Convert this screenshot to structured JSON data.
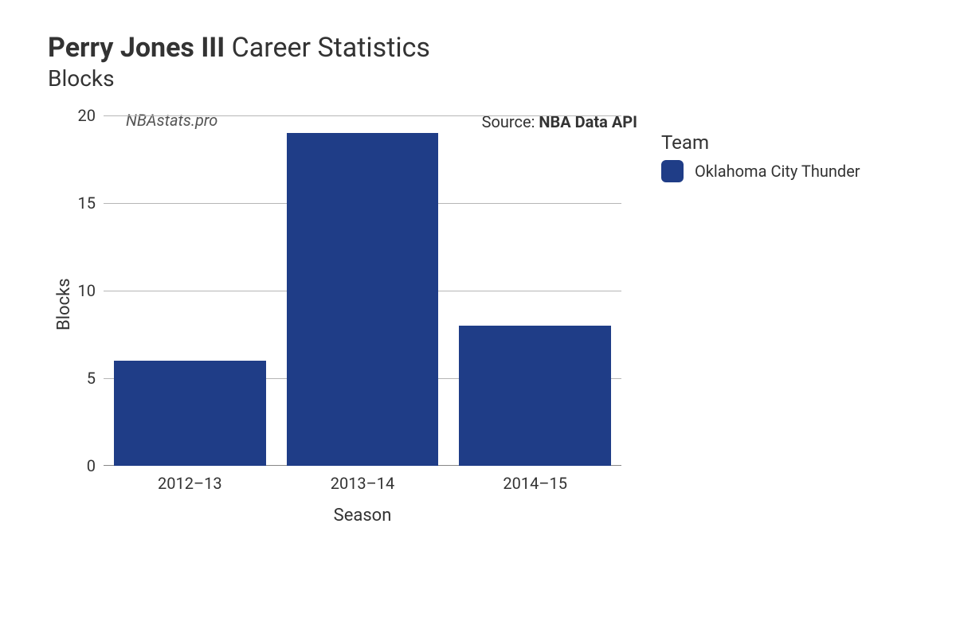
{
  "title": {
    "player_name": "Perry Jones III",
    "suffix": "Career Statistics",
    "metric": "Blocks"
  },
  "watermark": "NBAstats.pro",
  "source": {
    "prefix": "Source: ",
    "name": "NBA Data API"
  },
  "legend": {
    "title": "Team",
    "items": [
      {
        "label": "Oklahoma City Thunder",
        "color": "#1f3d87"
      }
    ]
  },
  "chart": {
    "type": "bar",
    "xlabel": "Season",
    "ylabel": "Blocks",
    "categories": [
      "2012–13",
      "2013–14",
      "2014–15"
    ],
    "values": [
      6,
      19,
      8
    ],
    "bar_colors": [
      "#1f3d87",
      "#1f3d87",
      "#1f3d87"
    ],
    "ylim": [
      0,
      20
    ],
    "ytick_step": 5,
    "bar_width": 0.88,
    "background_color": "#ffffff",
    "grid_color": "#b6b6b6",
    "axis_fontsize": 20,
    "label_fontsize": 22,
    "title_fontsize": 34
  }
}
